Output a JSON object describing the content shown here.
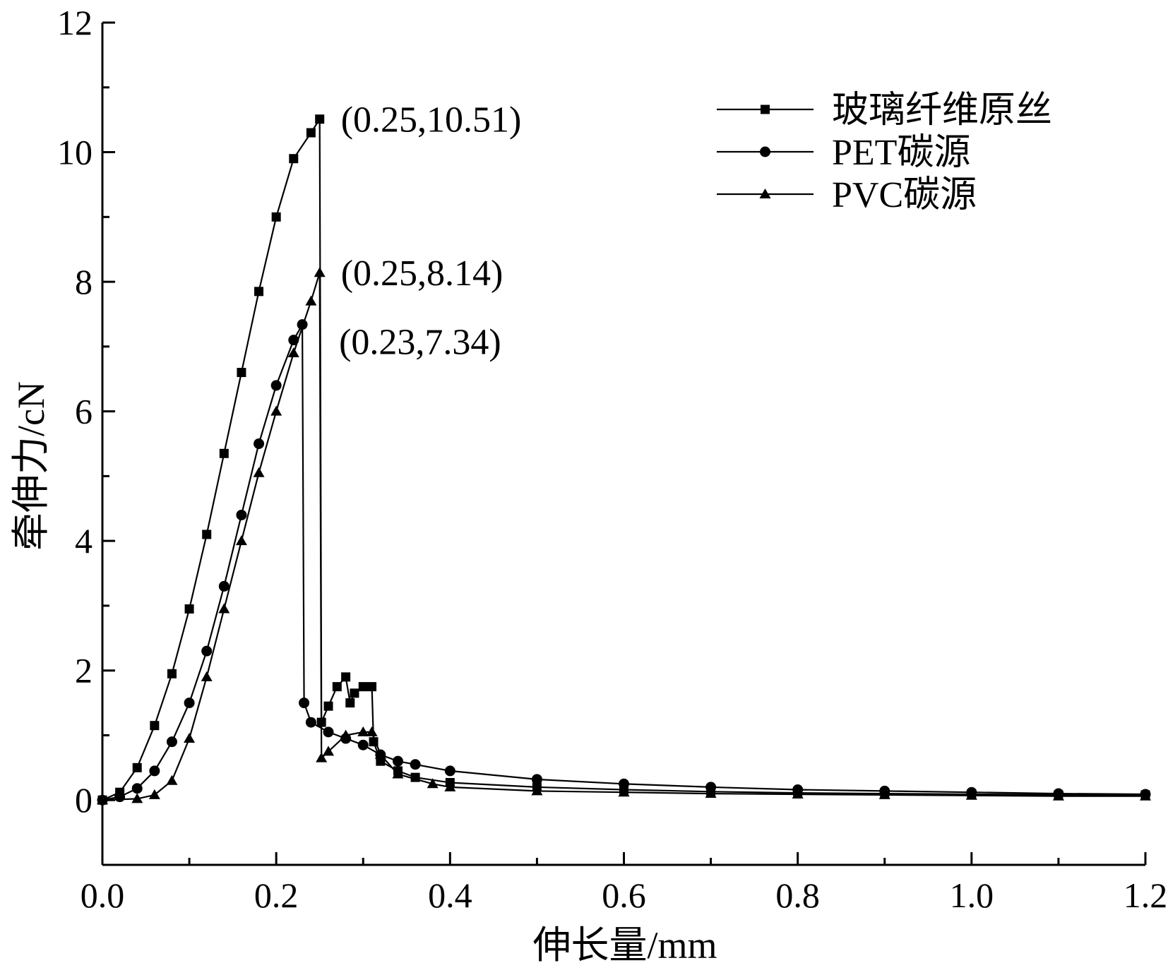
{
  "chart_data": {
    "type": "line",
    "xlabel": "伸长量/mm",
    "ylabel": "牵伸力/cN",
    "xlim": [
      0,
      1.2
    ],
    "ylim": [
      -1,
      12
    ],
    "xticks": [
      0.0,
      0.2,
      0.4,
      0.6,
      0.8,
      1.0,
      1.2
    ],
    "xtick_labels": [
      "0.0",
      "0.2",
      "0.4",
      "0.6",
      "0.8",
      "1.0",
      "1.2"
    ],
    "yticks": [
      0,
      2,
      4,
      6,
      8,
      10,
      12
    ],
    "ytick_labels": [
      "0",
      "2",
      "4",
      "6",
      "8",
      "10",
      "12"
    ],
    "grid": false,
    "legend_position": "top-right",
    "series": [
      {
        "name": "玻璃纤维原丝",
        "marker": "square",
        "x": [
          0.0,
          0.02,
          0.04,
          0.06,
          0.08,
          0.1,
          0.12,
          0.14,
          0.16,
          0.18,
          0.2,
          0.22,
          0.24,
          0.25,
          0.252,
          0.26,
          0.27,
          0.28,
          0.285,
          0.29,
          0.3,
          0.31,
          0.312,
          0.32,
          0.34,
          0.36,
          0.4,
          0.5,
          0.6,
          0.7,
          0.8,
          0.9,
          1.0,
          1.1,
          1.2
        ],
        "y": [
          0.0,
          0.12,
          0.5,
          1.15,
          1.95,
          2.95,
          4.1,
          5.35,
          6.6,
          7.85,
          9.0,
          9.9,
          10.3,
          10.51,
          1.2,
          1.45,
          1.75,
          1.9,
          1.5,
          1.65,
          1.75,
          1.75,
          0.9,
          0.6,
          0.45,
          0.35,
          0.27,
          0.2,
          0.16,
          0.13,
          0.11,
          0.1,
          0.09,
          0.08,
          0.08
        ]
      },
      {
        "name": "PET碳源",
        "marker": "circle",
        "x": [
          0.0,
          0.02,
          0.04,
          0.06,
          0.08,
          0.1,
          0.12,
          0.14,
          0.16,
          0.18,
          0.2,
          0.22,
          0.23,
          0.232,
          0.24,
          0.26,
          0.28,
          0.3,
          0.32,
          0.34,
          0.36,
          0.4,
          0.5,
          0.6,
          0.7,
          0.8,
          0.9,
          1.0,
          1.1,
          1.2
        ],
        "y": [
          0.0,
          0.05,
          0.18,
          0.45,
          0.9,
          1.5,
          2.3,
          3.3,
          4.4,
          5.5,
          6.4,
          7.1,
          7.34,
          1.5,
          1.2,
          1.05,
          0.95,
          0.85,
          0.7,
          0.6,
          0.55,
          0.45,
          0.32,
          0.25,
          0.2,
          0.16,
          0.14,
          0.12,
          0.1,
          0.09
        ]
      },
      {
        "name": "PVC碳源",
        "marker": "triangle",
        "x": [
          0.0,
          0.04,
          0.06,
          0.08,
          0.1,
          0.12,
          0.14,
          0.16,
          0.18,
          0.2,
          0.22,
          0.24,
          0.25,
          0.252,
          0.26,
          0.28,
          0.3,
          0.31,
          0.32,
          0.34,
          0.38,
          0.4,
          0.5,
          0.6,
          0.7,
          0.8,
          0.9,
          1.0,
          1.1,
          1.2
        ],
        "y": [
          0.0,
          0.02,
          0.08,
          0.3,
          0.95,
          1.9,
          2.95,
          4.0,
          5.05,
          6.0,
          6.9,
          7.7,
          8.14,
          0.65,
          0.75,
          1.0,
          1.05,
          1.05,
          0.7,
          0.4,
          0.25,
          0.2,
          0.14,
          0.12,
          0.1,
          0.09,
          0.08,
          0.07,
          0.06,
          0.06
        ]
      }
    ],
    "annotations": [
      {
        "text": "(0.25,10.51)",
        "x": 0.25,
        "y": 10.51
      },
      {
        "text": "(0.25,8.14)",
        "x": 0.25,
        "y": 8.14
      },
      {
        "text": "(0.23,7.34)",
        "x": 0.23,
        "y": 7.34
      }
    ]
  }
}
